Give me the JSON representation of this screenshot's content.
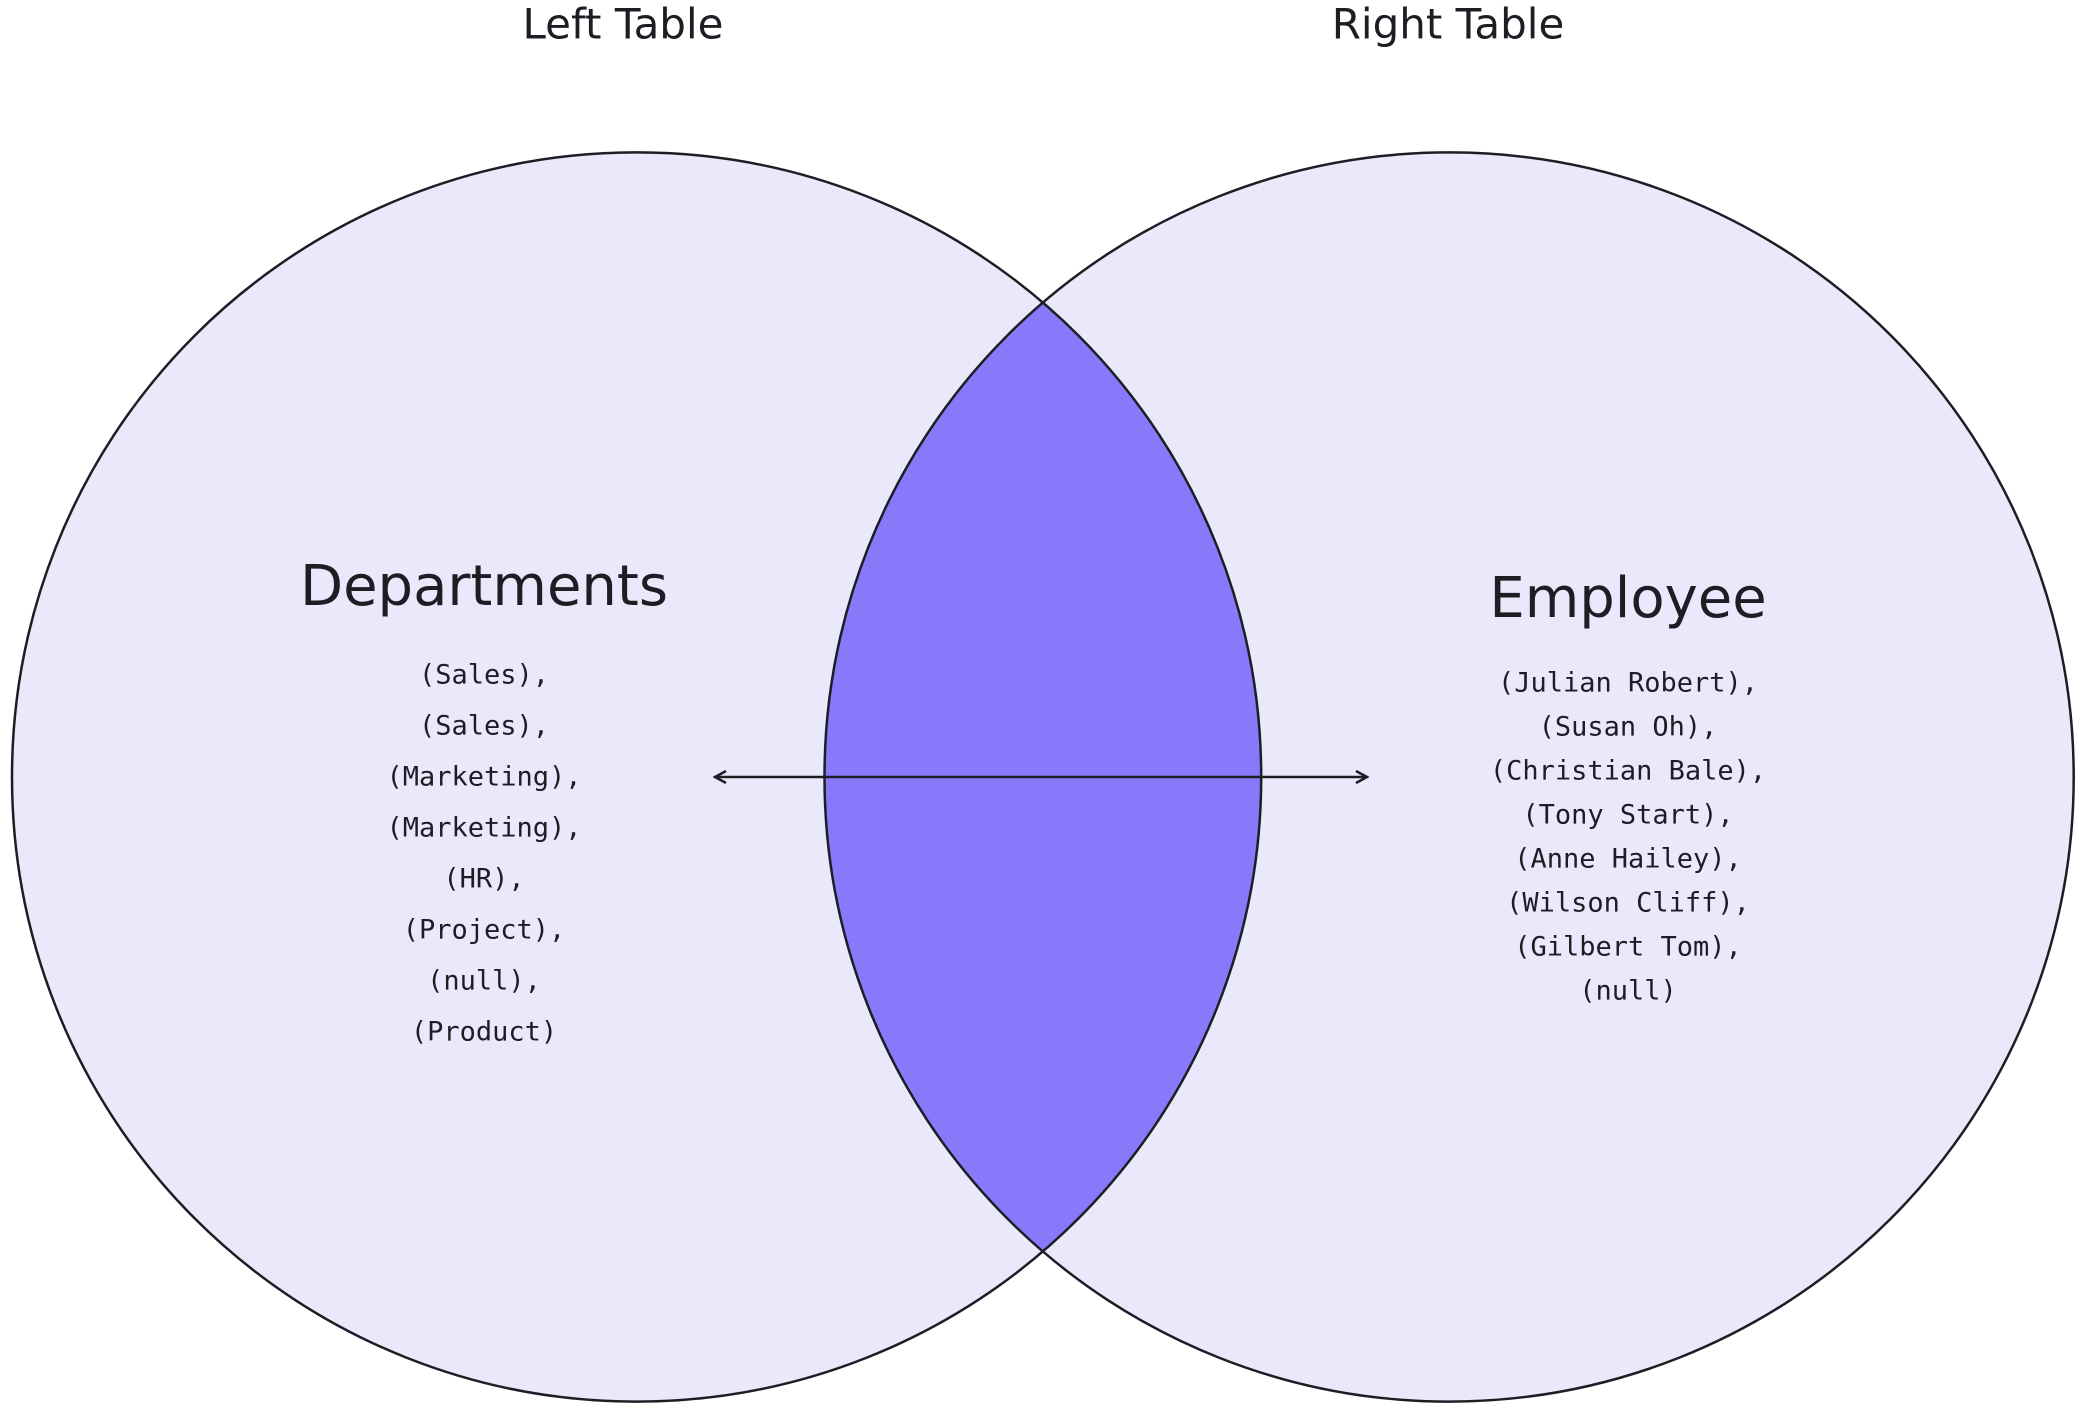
{
  "labels": {
    "left": "Left Table",
    "right": "Right Table"
  },
  "left": {
    "name": "Departments",
    "rows": [
      "(Sales),",
      "(Sales),",
      "(Marketing),",
      "(Marketing),",
      "(HR),",
      "(Project),",
      "(null),",
      "(Product)"
    ]
  },
  "right": {
    "name": "Employee",
    "rows": [
      "(Julian Robert),",
      "(Susan Oh),",
      "(Christian Bale),",
      "(Tony Start),",
      "(Anne Hailey),",
      "(Wilson Cliff),",
      "(Gilbert Tom),",
      "(null)"
    ]
  }
}
